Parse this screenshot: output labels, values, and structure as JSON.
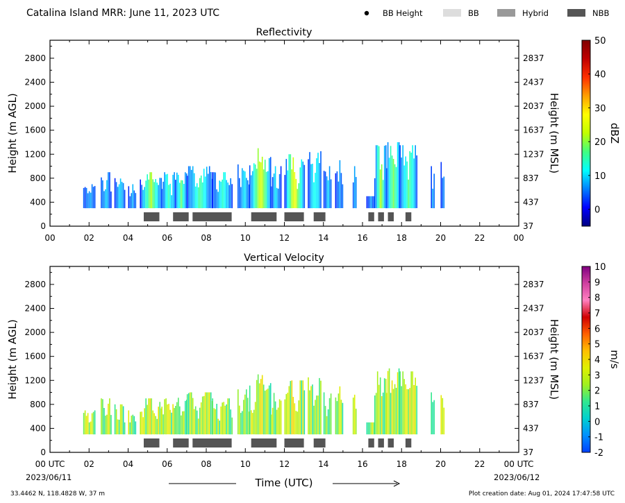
{
  "header": {
    "title": "Catalina Island MRR:  June 11, 2023 UTC",
    "legend": [
      {
        "label": "BB Height",
        "kind": "marker",
        "color": "#000000"
      },
      {
        "label": "BB",
        "kind": "swatch",
        "color": "#dddddd"
      },
      {
        "label": "Hybrid",
        "kind": "swatch",
        "color": "#999999"
      },
      {
        "label": "NBB",
        "kind": "swatch",
        "color": "#555555"
      }
    ]
  },
  "footer": {
    "location": "33.4462 N, 118.4828 W, 37 m",
    "creation": "Plot creation date: Aug 01, 2024 17:47:58 UTC",
    "xlabel": "Time (UTC)",
    "start_date": "2023/06/11",
    "end_date": "2023/06/12"
  },
  "chart_data": [
    {
      "type": "heatmap",
      "title": "Reflectivity",
      "ylabel": "Height (m AGL)",
      "y2label": "Height (m MSL)",
      "xlim": [
        0,
        24
      ],
      "ylim": [
        0,
        3100
      ],
      "x_tick_labels": [
        "00",
        "02",
        "04",
        "06",
        "08",
        "10",
        "12",
        "14",
        "16",
        "18",
        "20",
        "22",
        "00"
      ],
      "y_ticks": [
        0,
        400,
        800,
        1200,
        1600,
        2000,
        2400,
        2800
      ],
      "y2_tick_labels": [
        "37",
        "437",
        "837",
        "1237",
        "1637",
        "2037",
        "2437",
        "2837"
      ],
      "colorbar": {
        "label": "dBZ",
        "min": -5,
        "max": 50,
        "ticks": [
          0,
          10,
          20,
          30,
          40,
          50
        ],
        "stops": [
          "#000080",
          "#0000ff",
          "#0080ff",
          "#00ffff",
          "#40ff80",
          "#c0ff00",
          "#ffff00",
          "#ffa000",
          "#ff3000",
          "#c00000",
          "#800000"
        ]
      },
      "echo_segments": [
        {
          "start": 1.7,
          "end": 2.3,
          "top": 700,
          "core": 0.1
        },
        {
          "start": 2.6,
          "end": 3.1,
          "top": 900,
          "core": 0.15
        },
        {
          "start": 3.3,
          "end": 3.8,
          "top": 800,
          "core": 0.15
        },
        {
          "start": 4.0,
          "end": 4.4,
          "top": 700,
          "core": 0.1
        },
        {
          "start": 4.6,
          "end": 5.7,
          "top": 900,
          "core": 0.45
        },
        {
          "start": 5.7,
          "end": 6.4,
          "top": 900,
          "core": 0.3
        },
        {
          "start": 6.4,
          "end": 7.0,
          "top": 1000,
          "core": 0.35
        },
        {
          "start": 7.0,
          "end": 8.3,
          "top": 1000,
          "core": 0.3
        },
        {
          "start": 8.3,
          "end": 9.3,
          "top": 900,
          "core": 0.25
        },
        {
          "start": 9.6,
          "end": 10.2,
          "top": 1050,
          "core": 0.2
        },
        {
          "start": 10.2,
          "end": 11.3,
          "top": 1300,
          "core": 0.55
        },
        {
          "start": 11.3,
          "end": 11.8,
          "top": 1000,
          "core": 0.15
        },
        {
          "start": 12.0,
          "end": 13.0,
          "top": 1200,
          "core": 0.6
        },
        {
          "start": 13.2,
          "end": 13.9,
          "top": 1250,
          "core": 0.25
        },
        {
          "start": 14.0,
          "end": 14.4,
          "top": 1000,
          "core": 0.15
        },
        {
          "start": 14.6,
          "end": 15.0,
          "top": 1100,
          "core": 0.1
        },
        {
          "start": 15.5,
          "end": 15.7,
          "top": 1000,
          "core": 0.1
        },
        {
          "start": 16.2,
          "end": 16.6,
          "top": 500,
          "core": 0.1
        },
        {
          "start": 16.6,
          "end": 17.2,
          "top": 1350,
          "core": 0.45
        },
        {
          "start": 17.2,
          "end": 17.9,
          "top": 1400,
          "core": 0.4
        },
        {
          "start": 17.9,
          "end": 18.8,
          "top": 1350,
          "core": 0.35
        },
        {
          "start": 19.5,
          "end": 19.7,
          "top": 1000,
          "core": 0.1
        },
        {
          "start": 20.0,
          "end": 20.2,
          "top": 1150,
          "core": 0.1
        }
      ],
      "bright_band_bars": [
        {
          "start": 4.8,
          "end": 5.6,
          "type": "NBB"
        },
        {
          "start": 6.3,
          "end": 7.1,
          "type": "NBB"
        },
        {
          "start": 7.3,
          "end": 9.3,
          "type": "NBB"
        },
        {
          "start": 10.3,
          "end": 11.6,
          "type": "NBB"
        },
        {
          "start": 12.0,
          "end": 13.0,
          "type": "NBB"
        },
        {
          "start": 13.5,
          "end": 14.1,
          "type": "NBB"
        },
        {
          "start": 16.3,
          "end": 16.6,
          "type": "NBB"
        },
        {
          "start": 16.8,
          "end": 17.1,
          "type": "NBB"
        },
        {
          "start": 17.3,
          "end": 17.6,
          "type": "NBB"
        },
        {
          "start": 18.2,
          "end": 18.5,
          "type": "NBB"
        }
      ]
    },
    {
      "type": "heatmap",
      "title": "Vertical Velocity",
      "ylabel": "Height (m AGL)",
      "y2label": "Height (m MSL)",
      "xlim": [
        0,
        24
      ],
      "ylim": [
        0,
        3100
      ],
      "x_tick_labels": [
        "00 UTC",
        "02",
        "04",
        "06",
        "08",
        "10",
        "12",
        "14",
        "16",
        "18",
        "20",
        "22",
        "00 UTC"
      ],
      "y_ticks": [
        0,
        400,
        800,
        1200,
        1600,
        2000,
        2400,
        2800
      ],
      "y2_tick_labels": [
        "37",
        "437",
        "837",
        "1237",
        "1637",
        "2037",
        "2437",
        "2837"
      ],
      "colorbar": {
        "label": "m/s",
        "min": -2,
        "max": 10,
        "ticks": [
          -2,
          -1,
          0,
          1,
          2,
          3,
          4,
          5,
          6,
          7,
          8,
          9,
          10
        ],
        "stops": [
          "#0040ff",
          "#0090ff",
          "#00d0d0",
          "#30e890",
          "#a0f020",
          "#e0f000",
          "#ffc000",
          "#ff6000",
          "#d00000",
          "#ff80c0",
          "#d040a0",
          "#800080"
        ]
      },
      "echo_segments": [
        {
          "start": 1.7,
          "end": 2.3,
          "top": 700,
          "core": 0.1
        },
        {
          "start": 2.6,
          "end": 3.1,
          "top": 900,
          "core": 0.15
        },
        {
          "start": 3.3,
          "end": 3.8,
          "top": 800,
          "core": 0.15
        },
        {
          "start": 4.0,
          "end": 4.4,
          "top": 700,
          "core": 0.1
        },
        {
          "start": 4.6,
          "end": 5.7,
          "top": 900,
          "core": 0.45
        },
        {
          "start": 5.7,
          "end": 6.4,
          "top": 900,
          "core": 0.3
        },
        {
          "start": 6.4,
          "end": 7.0,
          "top": 1000,
          "core": 0.35
        },
        {
          "start": 7.0,
          "end": 8.3,
          "top": 1000,
          "core": 0.3
        },
        {
          "start": 8.3,
          "end": 9.3,
          "top": 900,
          "core": 0.25
        },
        {
          "start": 9.6,
          "end": 10.2,
          "top": 1050,
          "core": 0.2
        },
        {
          "start": 10.2,
          "end": 11.3,
          "top": 1300,
          "core": 0.55
        },
        {
          "start": 11.3,
          "end": 11.8,
          "top": 1000,
          "core": 0.15
        },
        {
          "start": 12.0,
          "end": 13.0,
          "top": 1200,
          "core": 0.6
        },
        {
          "start": 13.2,
          "end": 13.9,
          "top": 1250,
          "core": 0.25
        },
        {
          "start": 14.0,
          "end": 14.4,
          "top": 1000,
          "core": 0.15
        },
        {
          "start": 14.6,
          "end": 15.0,
          "top": 1100,
          "core": 0.1
        },
        {
          "start": 15.5,
          "end": 15.7,
          "top": 1000,
          "core": 0.1
        },
        {
          "start": 16.2,
          "end": 16.6,
          "top": 500,
          "core": 0.1
        },
        {
          "start": 16.6,
          "end": 17.2,
          "top": 1350,
          "core": 0.45
        },
        {
          "start": 17.2,
          "end": 17.9,
          "top": 1400,
          "core": 0.4
        },
        {
          "start": 17.9,
          "end": 18.8,
          "top": 1350,
          "core": 0.35
        },
        {
          "start": 19.5,
          "end": 19.7,
          "top": 1000,
          "core": 0.1
        },
        {
          "start": 20.0,
          "end": 20.2,
          "top": 1150,
          "core": 0.1
        }
      ],
      "bright_band_bars": [
        {
          "start": 4.8,
          "end": 5.6,
          "type": "NBB"
        },
        {
          "start": 6.3,
          "end": 7.1,
          "type": "NBB"
        },
        {
          "start": 7.3,
          "end": 9.3,
          "type": "NBB"
        },
        {
          "start": 10.3,
          "end": 11.6,
          "type": "NBB"
        },
        {
          "start": 12.0,
          "end": 13.0,
          "type": "NBB"
        },
        {
          "start": 13.5,
          "end": 14.1,
          "type": "NBB"
        },
        {
          "start": 16.3,
          "end": 16.6,
          "type": "NBB"
        },
        {
          "start": 16.8,
          "end": 17.1,
          "type": "NBB"
        },
        {
          "start": 17.3,
          "end": 17.6,
          "type": "NBB"
        },
        {
          "start": 18.2,
          "end": 18.5,
          "type": "NBB"
        }
      ]
    }
  ]
}
